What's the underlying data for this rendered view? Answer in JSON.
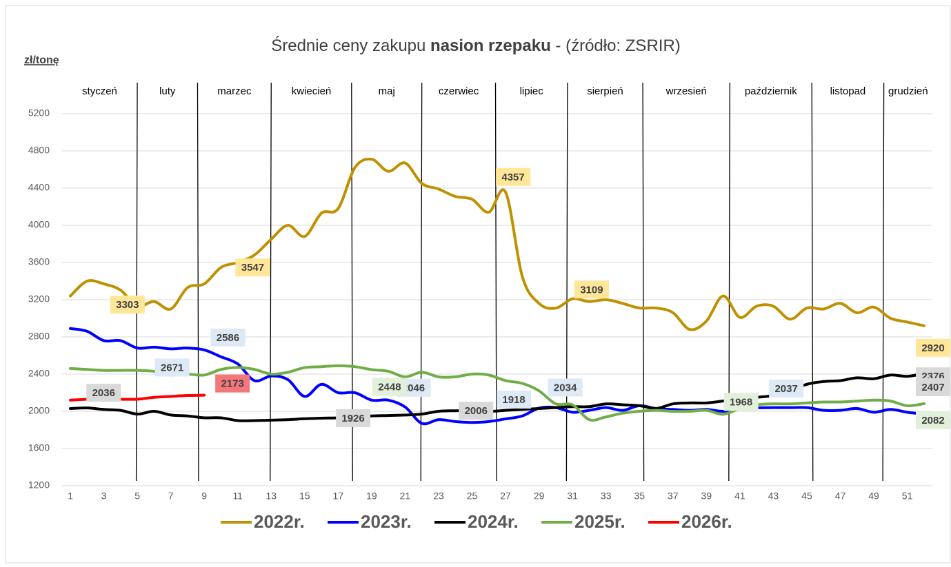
{
  "chart_data": {
    "type": "line",
    "title": [
      "Średnie ceny zakupu ",
      "nasion rzepaku",
      " - (źródło: ZSRIR)"
    ],
    "y_label": "zł/tonę",
    "x": [
      1,
      2,
      3,
      4,
      5,
      6,
      7,
      8,
      9,
      10,
      11,
      12,
      13,
      14,
      15,
      16,
      17,
      18,
      19,
      20,
      21,
      22,
      23,
      24,
      25,
      26,
      27,
      28,
      29,
      30,
      31,
      32,
      33,
      34,
      35,
      36,
      37,
      38,
      39,
      40,
      41,
      42,
      43,
      44,
      45,
      46,
      47,
      48,
      49,
      50,
      51,
      52
    ],
    "xlim": [
      1,
      52.5
    ],
    "xticks": [
      1,
      3,
      5,
      7,
      9,
      11,
      13,
      15,
      17,
      19,
      21,
      23,
      25,
      27,
      29,
      31,
      33,
      35,
      37,
      39,
      41,
      43,
      45,
      47,
      49,
      51
    ],
    "ylim": [
      1200,
      5200
    ],
    "yticks": [
      1200,
      1600,
      2000,
      2400,
      2800,
      3200,
      3600,
      4000,
      4400,
      4800,
      5200
    ],
    "grid": true,
    "months": [
      "styczeń",
      "luty",
      "marzec",
      "kwiecień",
      "maj",
      "czerwiec",
      "lipiec",
      "sierpień",
      "wrzesień",
      "październik",
      "listopad",
      "grudzień"
    ],
    "month_boundaries": [
      5,
      8.6,
      13,
      17.8,
      22,
      26.4,
      30.7,
      35.2,
      40.4,
      45.3,
      49.6
    ],
    "series": [
      {
        "name": "2022r.",
        "color": "#bf9000",
        "label_bg": "#ffe699",
        "values": [
          3240,
          3400,
          3370,
          3303,
          3130,
          3180,
          3100,
          3330,
          3370,
          3547,
          3600,
          3680,
          3850,
          4000,
          3880,
          4130,
          4180,
          4620,
          4710,
          4580,
          4670,
          4450,
          4390,
          4310,
          4280,
          4140,
          4357,
          3450,
          3160,
          3109,
          3210,
          3180,
          3200,
          3160,
          3110,
          3110,
          3060,
          2880,
          2970,
          3240,
          3010,
          3130,
          3130,
          2990,
          3110,
          3100,
          3160,
          3060,
          3120,
          3000,
          2960,
          2920
        ]
      },
      {
        "name": "2023r.",
        "color": "#0000ff",
        "label_bg": "#dde9f5",
        "values": [
          2890,
          2860,
          2760,
          2760,
          2680,
          2690,
          2671,
          2680,
          2660,
          2586,
          2510,
          2330,
          2380,
          2340,
          2160,
          2290,
          2200,
          2200,
          2120,
          2120,
          2046,
          1870,
          1910,
          1890,
          1880,
          1890,
          1918,
          1950,
          2034,
          2040,
          1990,
          2010,
          2040,
          2010,
          2060,
          2030,
          2020,
          2010,
          2020,
          2000,
          2030,
          2037,
          2040,
          2040,
          2040,
          2010,
          2010,
          2030,
          1990,
          2020,
          1990,
          1970
        ]
      },
      {
        "name": "2024r.",
        "color": "#000000",
        "label_bg": "#d9d9d9",
        "values": [
          2030,
          2036,
          2020,
          2010,
          1970,
          2000,
          1960,
          1950,
          1930,
          1930,
          1900,
          1900,
          1905,
          1910,
          1920,
          1926,
          1930,
          1940,
          1950,
          1955,
          1960,
          1970,
          2000,
          2006,
          2010,
          2000,
          2010,
          2020,
          2030,
          2040,
          2050,
          2050,
          2080,
          2070,
          2060,
          2030,
          2080,
          2090,
          2090,
          2110,
          2130,
          2150,
          2170,
          2220,
          2290,
          2320,
          2330,
          2360,
          2350,
          2390,
          2376,
          2407
        ]
      },
      {
        "name": "2025r.",
        "color": "#70ad47",
        "label_bg": "#e2efda",
        "values": [
          2460,
          2450,
          2440,
          2440,
          2440,
          2430,
          2390,
          2400,
          2390,
          2450,
          2470,
          2450,
          2400,
          2420,
          2470,
          2480,
          2490,
          2480,
          2448,
          2430,
          2370,
          2420,
          2370,
          2370,
          2400,
          2390,
          2330,
          2300,
          2220,
          2080,
          2070,
          1910,
          1940,
          1980,
          2000,
          2010,
          2000,
          2000,
          2010,
          1968,
          2030,
          2070,
          2080,
          2080,
          2090,
          2100,
          2100,
          2110,
          2120,
          2110,
          2060,
          2082
        ]
      },
      {
        "name": "2026r.",
        "color": "#ff0000",
        "label_bg": "#f4777a",
        "values": [
          2120,
          2130,
          2140,
          2130,
          2130,
          2150,
          2160,
          2170,
          2173,
          null,
          null,
          null,
          null,
          null,
          null,
          null,
          null,
          null,
          null,
          null,
          null,
          null,
          null,
          null,
          null,
          null,
          null,
          null,
          null,
          null,
          null,
          null,
          null,
          null,
          null,
          null,
          null,
          null,
          null,
          null,
          null,
          null,
          null,
          null,
          null,
          null,
          null,
          null,
          null,
          null,
          null,
          null
        ]
      }
    ]
  }
}
